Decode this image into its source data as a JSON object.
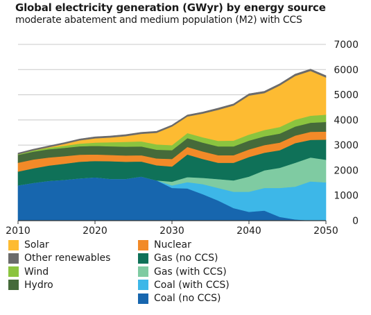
{
  "chart_data": {
    "type": "area",
    "stacked": true,
    "title": "Global electricity generation (GWyr) by energy source",
    "subtitle": "moderate abatement and medium population (M2) with CCS",
    "xlabel": "",
    "ylabel": "",
    "xlim": [
      2010,
      2050
    ],
    "ylim": [
      0,
      7000
    ],
    "x_ticks": [
      2010,
      2020,
      2030,
      2040,
      2050
    ],
    "y_ticks": [
      0,
      1000,
      2000,
      3000,
      4000,
      5000,
      6000,
      7000
    ],
    "grid": true,
    "legend_position": "bottom",
    "x": [
      2010,
      2012,
      2014,
      2016,
      2018,
      2020,
      2022,
      2024,
      2026,
      2028,
      2030,
      2032,
      2034,
      2036,
      2038,
      2040,
      2042,
      2044,
      2046,
      2048,
      2050
    ],
    "series": [
      {
        "name": "Coal (no CCS)",
        "color": "#1766ae",
        "values": [
          1400,
          1500,
          1580,
          1620,
          1680,
          1720,
          1660,
          1660,
          1750,
          1600,
          1300,
          1280,
          1050,
          800,
          500,
          350,
          400,
          150,
          50,
          10,
          0
        ]
      },
      {
        "name": "Coal (with CCS)",
        "color": "#3db7e8",
        "values": [
          0,
          0,
          0,
          0,
          0,
          0,
          0,
          0,
          0,
          0,
          100,
          250,
          400,
          500,
          650,
          800,
          900,
          1150,
          1300,
          1550,
          1520
        ]
      },
      {
        "name": "Gas (with CCS)",
        "color": "#7fcba2",
        "values": [
          0,
          0,
          0,
          0,
          0,
          0,
          0,
          0,
          0,
          0,
          150,
          200,
          250,
          350,
          450,
          600,
          700,
          800,
          950,
          950,
          900
        ]
      },
      {
        "name": "Gas (no CCS)",
        "color": "#0f7158",
        "values": [
          550,
          580,
          610,
          640,
          660,
          650,
          700,
          680,
          600,
          600,
          600,
          900,
          750,
          650,
          700,
          780,
          700,
          700,
          780,
          700,
          800
        ]
      },
      {
        "name": "Nuclear",
        "color": "#f28a28",
        "values": [
          350,
          350,
          320,
          300,
          280,
          260,
          250,
          250,
          250,
          270,
          300,
          300,
          300,
          300,
          300,
          300,
          300,
          300,
          300,
          320,
          320
        ]
      },
      {
        "name": "Hydro",
        "color": "#456a3a",
        "values": [
          310,
          315,
          325,
          330,
          335,
          340,
          345,
          350,
          350,
          350,
          350,
          350,
          350,
          350,
          350,
          350,
          350,
          360,
          360,
          360,
          380
        ]
      },
      {
        "name": "Wind",
        "color": "#8bc43f",
        "values": [
          25,
          45,
          65,
          85,
          105,
          130,
          160,
          190,
          200,
          210,
          200,
          200,
          210,
          220,
          230,
          240,
          250,
          260,
          270,
          280,
          290
        ]
      },
      {
        "name": "Solar",
        "color": "#fdbb32",
        "values": [
          0,
          0,
          20,
          70,
          130,
          170,
          190,
          230,
          300,
          460,
          740,
          660,
          945,
          1235,
          1395,
          1550,
          1470,
          1650,
          1740,
          1780,
          1480
        ]
      },
      {
        "name": "Other renewables",
        "color": "#6b6b6b",
        "values": [
          50,
          50,
          50,
          55,
          55,
          60,
          60,
          60,
          60,
          60,
          60,
          60,
          60,
          65,
          65,
          70,
          70,
          70,
          70,
          70,
          70
        ]
      }
    ],
    "legend_order": [
      "Solar",
      "Other renewables",
      "Wind",
      "Hydro",
      "Nuclear",
      "Gas (no CCS)",
      "Gas (with CCS)",
      "Coal (with CCS)",
      "Coal (no CCS)"
    ],
    "gridline_color": "#c8c8c8"
  }
}
